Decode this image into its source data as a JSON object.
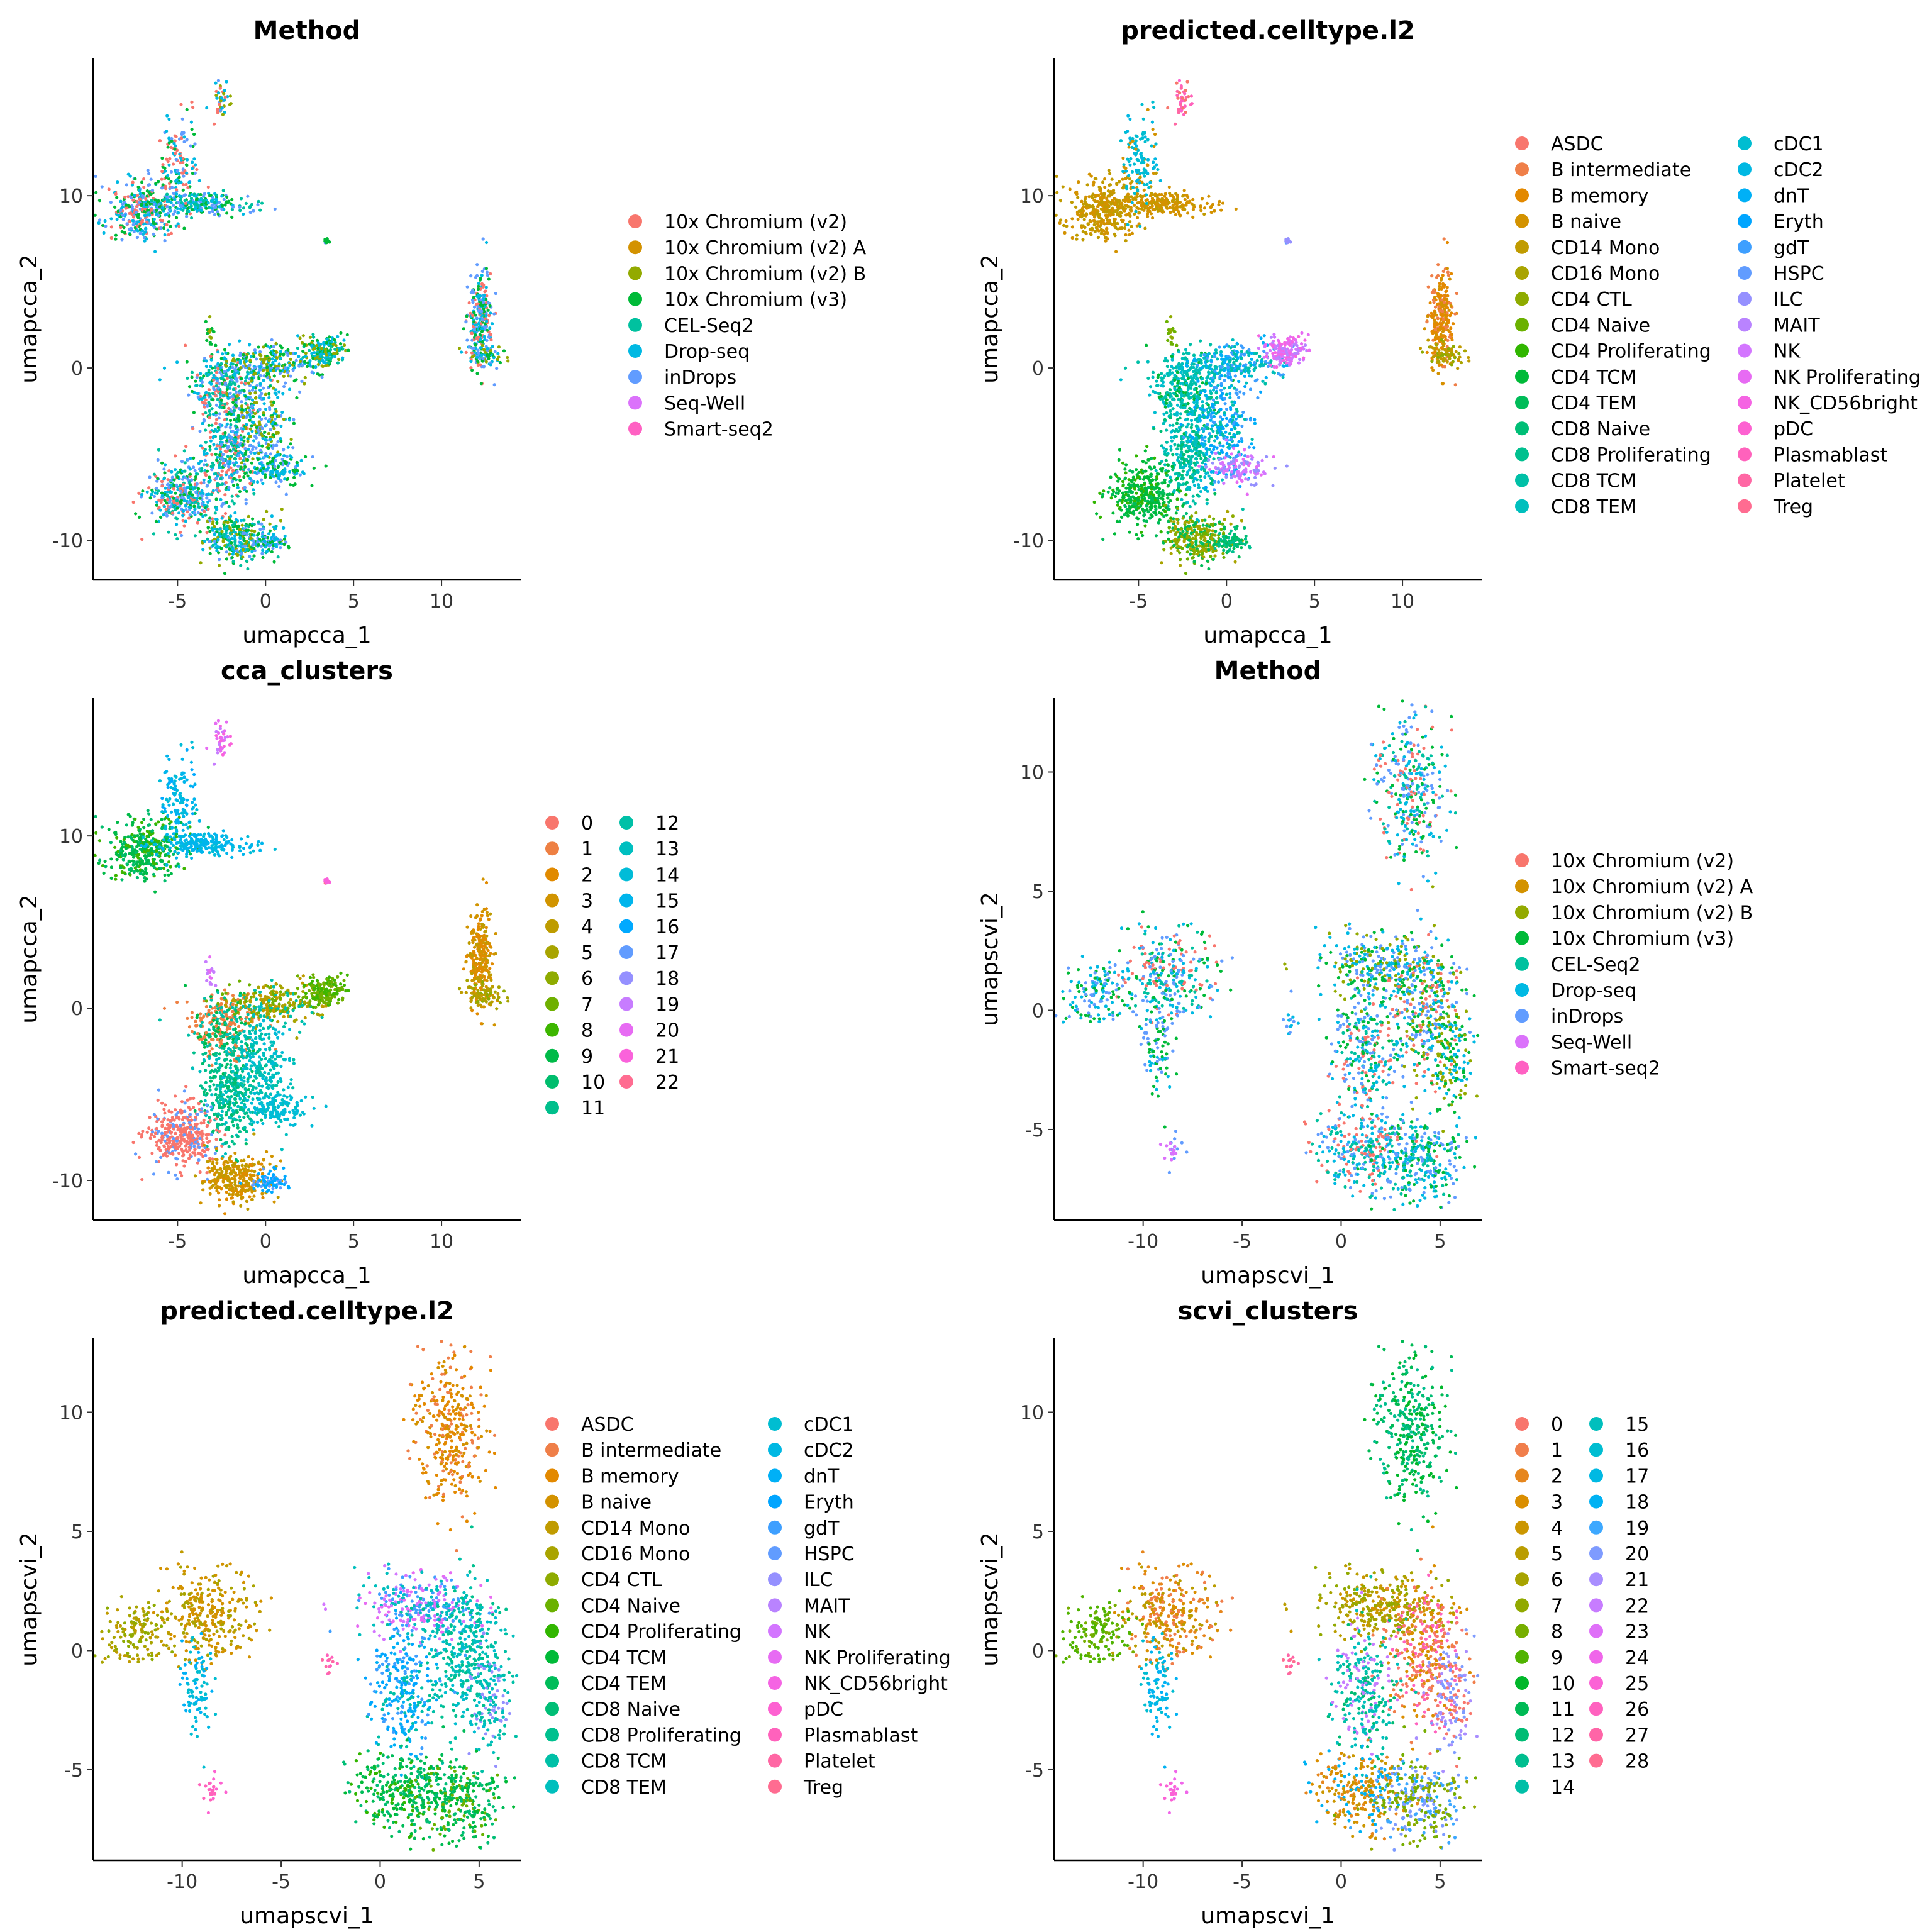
{
  "chart_data": [
    {
      "type": "scatter",
      "title": "Method",
      "xlabel": "umapcca_1",
      "ylabel": "umapcca_2",
      "xlim": [
        -9.8,
        14.5
      ],
      "ylim": [
        -12.3,
        18.0
      ],
      "xticks": [
        -5,
        0,
        5,
        10
      ],
      "yticks": [
        -10,
        0,
        10
      ],
      "legend_title": "",
      "color_by": "method",
      "legend": [
        {
          "label": "10x Chromium (v2)",
          "color": "#F8766D"
        },
        {
          "label": "10x Chromium (v2) A",
          "color": "#D39200"
        },
        {
          "label": "10x Chromium (v2) B",
          "color": "#93AA00"
        },
        {
          "label": "10x Chromium (v3)",
          "color": "#00BA38"
        },
        {
          "label": "CEL-Seq2",
          "color": "#00C19F"
        },
        {
          "label": "Drop-seq",
          "color": "#00B9E3"
        },
        {
          "label": "inDrops",
          "color": "#619CFF"
        },
        {
          "label": "Seq-Well",
          "color": "#DB72FB"
        },
        {
          "label": "Smart-seq2",
          "color": "#FF61C3"
        }
      ]
    },
    {
      "type": "scatter",
      "title": "predicted.celltype.l2",
      "xlabel": "umapcca_1",
      "ylabel": "umapcca_2",
      "xlim": [
        -9.8,
        14.5
      ],
      "ylim": [
        -12.3,
        18.0
      ],
      "xticks": [
        -5,
        0,
        5,
        10
      ],
      "yticks": [
        -10,
        0,
        10
      ],
      "color_by": "celltype",
      "legend_columns": 2,
      "legend": [
        {
          "label": "ASDC",
          "color": "#F8766D"
        },
        {
          "label": "B intermediate",
          "color": "#EF7F49"
        },
        {
          "label": "B memory",
          "color": "#E38900"
        },
        {
          "label": "B naive",
          "color": "#D39200"
        },
        {
          "label": "CD14 Mono",
          "color": "#C09B00"
        },
        {
          "label": "CD16 Mono",
          "color": "#A9A400"
        },
        {
          "label": "CD4 CTL",
          "color": "#8EAB00"
        },
        {
          "label": "CD4 Naive",
          "color": "#6BB100"
        },
        {
          "label": "CD4 Proliferating",
          "color": "#31B600"
        },
        {
          "label": "CD4 TCM",
          "color": "#00BA38"
        },
        {
          "label": "CD4 TEM",
          "color": "#00BC59"
        },
        {
          "label": "CD8 Naive",
          "color": "#00BE76"
        },
        {
          "label": "CD8 Proliferating",
          "color": "#00C08F"
        },
        {
          "label": "CD8 TCM",
          "color": "#00C0A7"
        },
        {
          "label": "CD8 TEM",
          "color": "#00BFBD"
        },
        {
          "label": "cDC1",
          "color": "#00BDD1"
        },
        {
          "label": "cDC2",
          "color": "#00B8E3"
        },
        {
          "label": "dnT",
          "color": "#00B0F6"
        },
        {
          "label": "Eryth",
          "color": "#00A5FF"
        },
        {
          "label": "gdT",
          "color": "#3E9FFF"
        },
        {
          "label": "HSPC",
          "color": "#619CFF"
        },
        {
          "label": "ILC",
          "color": "#9590FF"
        },
        {
          "label": "MAIT",
          "color": "#B983FF"
        },
        {
          "label": "NK",
          "color": "#D376FF"
        },
        {
          "label": "NK Proliferating",
          "color": "#E76BF3"
        },
        {
          "label": "NK_CD56bright",
          "color": "#F564E3"
        },
        {
          "label": "pDC",
          "color": "#FD61D1"
        },
        {
          "label": "Plasmablast",
          "color": "#FF62BC"
        },
        {
          "label": "Platelet",
          "color": "#FF67A4"
        },
        {
          "label": "Treg",
          "color": "#FF6C91"
        }
      ]
    },
    {
      "type": "scatter",
      "title": "cca_clusters",
      "xlabel": "umapcca_1",
      "ylabel": "umapcca_2",
      "xlim": [
        -9.8,
        14.5
      ],
      "ylim": [
        -12.3,
        18.0
      ],
      "xticks": [
        -5,
        0,
        5,
        10
      ],
      "yticks": [
        -10,
        0,
        10
      ],
      "color_by": "cca_cluster",
      "legend_columns": 2,
      "legend": [
        {
          "label": "0",
          "color": "#F8766D"
        },
        {
          "label": "1",
          "color": "#EE8043"
        },
        {
          "label": "2",
          "color": "#E18A00"
        },
        {
          "label": "3",
          "color": "#D19400"
        },
        {
          "label": "4",
          "color": "#BE9C00"
        },
        {
          "label": "5",
          "color": "#A8A400"
        },
        {
          "label": "6",
          "color": "#8EAB00"
        },
        {
          "label": "7",
          "color": "#6FB000"
        },
        {
          "label": "8",
          "color": "#3DB600"
        },
        {
          "label": "9",
          "color": "#00BA48"
        },
        {
          "label": "10",
          "color": "#00BD6D"
        },
        {
          "label": "11",
          "color": "#00BF8C"
        },
        {
          "label": "12",
          "color": "#00C0A7"
        },
        {
          "label": "13",
          "color": "#00BFC0"
        },
        {
          "label": "14",
          "color": "#00BCD8"
        },
        {
          "label": "15",
          "color": "#00B5EC"
        },
        {
          "label": "16",
          "color": "#00A9FF"
        },
        {
          "label": "17",
          "color": "#619CFF"
        },
        {
          "label": "18",
          "color": "#9590FF"
        },
        {
          "label": "19",
          "color": "#C77CFF"
        },
        {
          "label": "20",
          "color": "#E76BF3"
        },
        {
          "label": "21",
          "color": "#FA62DB"
        },
        {
          "label": "22",
          "color": "#FF6C91"
        }
      ]
    },
    {
      "type": "scatter",
      "title": "Method",
      "xlabel": "umapscvi_1",
      "ylabel": "umapscvi_2",
      "xlim": [
        -14.5,
        7.1
      ],
      "ylim": [
        -8.8,
        13.1
      ],
      "xticks": [
        -10,
        -5,
        0,
        5
      ],
      "yticks": [
        -5,
        0,
        5,
        10
      ],
      "color_by": "method",
      "legend": [
        {
          "label": "10x Chromium (v2)",
          "color": "#F8766D"
        },
        {
          "label": "10x Chromium (v2) A",
          "color": "#D39200"
        },
        {
          "label": "10x Chromium (v2) B",
          "color": "#93AA00"
        },
        {
          "label": "10x Chromium (v3)",
          "color": "#00BA38"
        },
        {
          "label": "CEL-Seq2",
          "color": "#00C19F"
        },
        {
          "label": "Drop-seq",
          "color": "#00B9E3"
        },
        {
          "label": "inDrops",
          "color": "#619CFF"
        },
        {
          "label": "Seq-Well",
          "color": "#DB72FB"
        },
        {
          "label": "Smart-seq2",
          "color": "#FF61C3"
        }
      ]
    },
    {
      "type": "scatter",
      "title": "predicted.celltype.l2",
      "xlabel": "umapscvi_1",
      "ylabel": "umapscvi_2",
      "xlim": [
        -14.5,
        7.1
      ],
      "ylim": [
        -8.8,
        13.1
      ],
      "xticks": [
        -10,
        -5,
        0,
        5
      ],
      "yticks": [
        -5,
        0,
        5,
        10
      ],
      "color_by": "celltype",
      "legend_columns": 2,
      "legend": [
        {
          "label": "ASDC",
          "color": "#F8766D"
        },
        {
          "label": "B intermediate",
          "color": "#EF7F49"
        },
        {
          "label": "B memory",
          "color": "#E38900"
        },
        {
          "label": "B naive",
          "color": "#D39200"
        },
        {
          "label": "CD14 Mono",
          "color": "#C09B00"
        },
        {
          "label": "CD16 Mono",
          "color": "#A9A400"
        },
        {
          "label": "CD4 CTL",
          "color": "#8EAB00"
        },
        {
          "label": "CD4 Naive",
          "color": "#6BB100"
        },
        {
          "label": "CD4 Proliferating",
          "color": "#31B600"
        },
        {
          "label": "CD4 TCM",
          "color": "#00BA38"
        },
        {
          "label": "CD4 TEM",
          "color": "#00BC59"
        },
        {
          "label": "CD8 Naive",
          "color": "#00BE76"
        },
        {
          "label": "CD8 Proliferating",
          "color": "#00C08F"
        },
        {
          "label": "CD8 TCM",
          "color": "#00C0A7"
        },
        {
          "label": "CD8 TEM",
          "color": "#00BFBD"
        },
        {
          "label": "cDC1",
          "color": "#00BDD1"
        },
        {
          "label": "cDC2",
          "color": "#00B8E3"
        },
        {
          "label": "dnT",
          "color": "#00B0F6"
        },
        {
          "label": "Eryth",
          "color": "#00A5FF"
        },
        {
          "label": "gdT",
          "color": "#3E9FFF"
        },
        {
          "label": "HSPC",
          "color": "#619CFF"
        },
        {
          "label": "ILC",
          "color": "#9590FF"
        },
        {
          "label": "MAIT",
          "color": "#B983FF"
        },
        {
          "label": "NK",
          "color": "#D376FF"
        },
        {
          "label": "NK Proliferating",
          "color": "#E76BF3"
        },
        {
          "label": "NK_CD56bright",
          "color": "#F564E3"
        },
        {
          "label": "pDC",
          "color": "#FD61D1"
        },
        {
          "label": "Plasmablast",
          "color": "#FF62BC"
        },
        {
          "label": "Platelet",
          "color": "#FF67A4"
        },
        {
          "label": "Treg",
          "color": "#FF6C91"
        }
      ]
    },
    {
      "type": "scatter",
      "title": "scvi_clusters",
      "xlabel": "umapscvi_1",
      "ylabel": "umapscvi_2",
      "xlim": [
        -14.5,
        7.1
      ],
      "ylim": [
        -8.8,
        13.1
      ],
      "xticks": [
        -10,
        -5,
        0,
        5
      ],
      "yticks": [
        -5,
        0,
        5,
        10
      ],
      "color_by": "scvi_cluster",
      "legend_columns": 2,
      "legend": [
        {
          "label": "0",
          "color": "#F8766D"
        },
        {
          "label": "1",
          "color": "#F07E4B"
        },
        {
          "label": "2",
          "color": "#E6861D"
        },
        {
          "label": "3",
          "color": "#DA8E00"
        },
        {
          "label": "4",
          "color": "#CB9600"
        },
        {
          "label": "5",
          "color": "#BA9D00"
        },
        {
          "label": "6",
          "color": "#A7A300"
        },
        {
          "label": "7",
          "color": "#91A900"
        },
        {
          "label": "8",
          "color": "#76AE00"
        },
        {
          "label": "9",
          "color": "#50B300"
        },
        {
          "label": "10",
          "color": "#00B72A"
        },
        {
          "label": "11",
          "color": "#00BA55"
        },
        {
          "label": "12",
          "color": "#00BC74"
        },
        {
          "label": "13",
          "color": "#00BE8F"
        },
        {
          "label": "14",
          "color": "#00BFA7"
        },
        {
          "label": "15",
          "color": "#00BFBD"
        },
        {
          "label": "16",
          "color": "#00BDD1"
        },
        {
          "label": "17",
          "color": "#00B9E3"
        },
        {
          "label": "18",
          "color": "#00B2F3"
        },
        {
          "label": "19",
          "color": "#3DA8FF"
        },
        {
          "label": "20",
          "color": "#7E9BFF"
        },
        {
          "label": "21",
          "color": "#A98EFF"
        },
        {
          "label": "22",
          "color": "#C77CFF"
        },
        {
          "label": "23",
          "color": "#DF70F8"
        },
        {
          "label": "24",
          "color": "#F066EA"
        },
        {
          "label": "25",
          "color": "#FB62D6"
        },
        {
          "label": "26",
          "color": "#FF62BF"
        },
        {
          "label": "27",
          "color": "#FF65A7"
        },
        {
          "label": "28",
          "color": "#FF6C91"
        }
      ]
    }
  ]
}
